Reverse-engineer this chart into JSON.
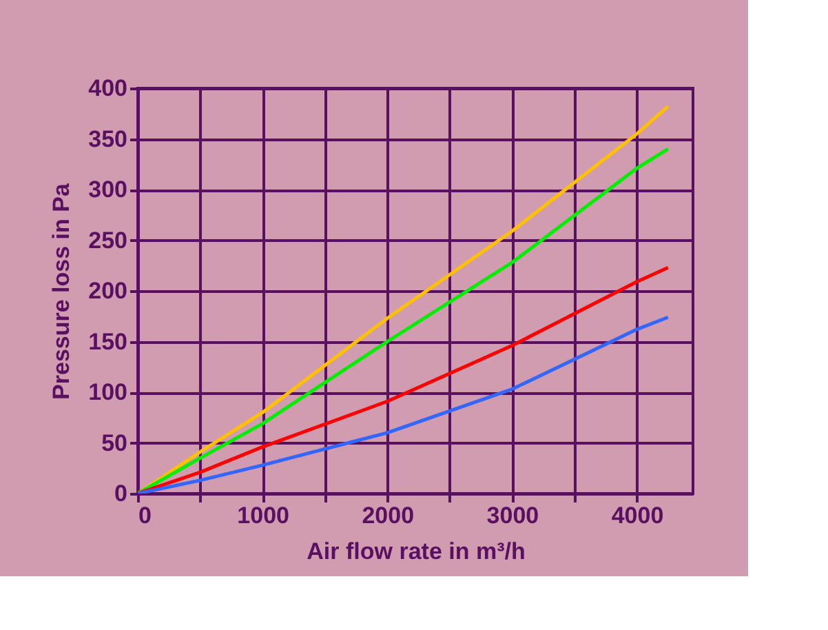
{
  "chart_data": {
    "type": "line",
    "xlabel": "Air flow rate in m³/h",
    "ylabel": "Pressure loss in Pa",
    "x": [
      0,
      500,
      1000,
      2000,
      3000,
      4000,
      4250
    ],
    "series": [
      {
        "color": "#ffc000",
        "values": [
          0,
          41,
          80,
          173,
          259,
          355,
          382
        ]
      },
      {
        "color": "#00ee00",
        "values": [
          0,
          35,
          69,
          150,
          228,
          321,
          340
        ]
      },
      {
        "color": "#ff0000",
        "values": [
          0,
          21,
          46,
          91,
          146,
          209,
          223
        ]
      },
      {
        "color": "#3366ff",
        "values": [
          0,
          13,
          28,
          60,
          103,
          162,
          174
        ]
      }
    ],
    "xlim": [
      0,
      4450
    ],
    "xticks": [
      0,
      {
        "value": 500,
        "label": null
      },
      1000,
      {
        "value": 1500,
        "label": null
      },
      2000,
      {
        "value": 2500,
        "label": null
      },
      3000,
      {
        "value": 3500,
        "label": null
      },
      4000
    ],
    "ylim": [
      0,
      400
    ],
    "yticks": [
      0,
      50,
      100,
      150,
      200,
      250,
      300,
      350,
      400
    ],
    "grid": true,
    "marker": "none",
    "line_style": "solid"
  }
}
